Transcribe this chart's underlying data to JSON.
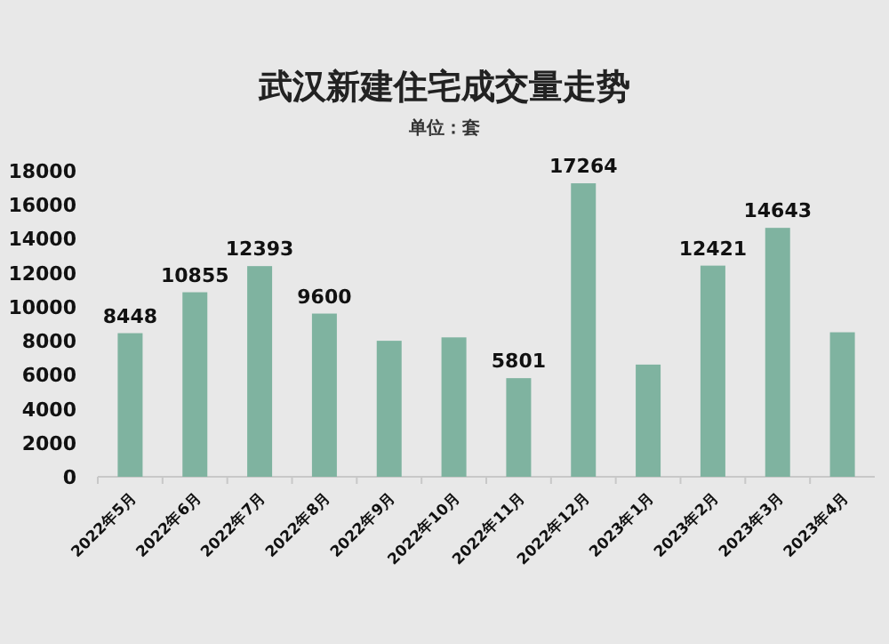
{
  "chart_data": {
    "type": "bar",
    "title": "武汉新建住宅成交量走势",
    "subtitle": "单位：套",
    "categories": [
      "2022年5月",
      "2022年6月",
      "2022年7月",
      "2022年8月",
      "2022年9月",
      "2022年10月",
      "2022年11月",
      "2022年12月",
      "2023年1月",
      "2023年2月",
      "2023年3月",
      "2023年4月"
    ],
    "values": [
      8448,
      10855,
      12393,
      9600,
      8000,
      8200,
      5801,
      17264,
      6600,
      12421,
      14643,
      8500
    ],
    "value_labels": [
      "8448",
      "10855",
      "12393",
      "9600",
      null,
      null,
      "5801",
      "17264",
      null,
      "12421",
      "14643",
      null
    ],
    "color": "#7fb3a0",
    "ylim": [
      0,
      18000
    ],
    "yticks": [
      0,
      2000,
      4000,
      6000,
      8000,
      10000,
      12000,
      14000,
      16000,
      18000
    ],
    "grid": false
  }
}
